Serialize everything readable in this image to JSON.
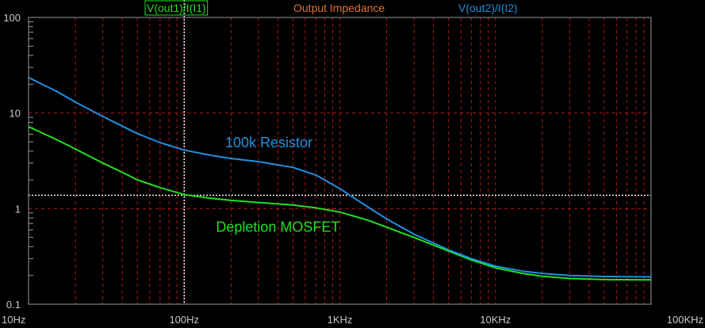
{
  "chart_data": {
    "type": "line",
    "title": "Output Impedance",
    "x_scale": "log",
    "y_scale": "log",
    "xlim": [
      10,
      100000
    ],
    "ylim": [
      0.1,
      100
    ],
    "x_ticks": [
      {
        "value": 10,
        "label": "10Hz"
      },
      {
        "value": 100,
        "label": "100Hz"
      },
      {
        "value": 1000,
        "label": "1KHz"
      },
      {
        "value": 10000,
        "label": "10KHz"
      },
      {
        "value": 100000,
        "label": "100KHz"
      }
    ],
    "y_ticks": [
      {
        "value": 100,
        "label": "100"
      },
      {
        "value": 10,
        "label": "10"
      },
      {
        "value": 1,
        "label": "1"
      },
      {
        "value": 0.1,
        "label": "0.1"
      }
    ],
    "grid": true,
    "cursor": {
      "x": 100,
      "y": 1.38
    },
    "annotations": [
      {
        "text": "100k Resistor",
        "x": 350,
        "y": 4.9,
        "color": "#1e90e0"
      },
      {
        "text": "Depletion MOSFET",
        "x": 400,
        "y": 0.64,
        "color": "#20e020"
      }
    ],
    "series": [
      {
        "name": "V(out1)/I(I1)",
        "color": "#20e020",
        "boxed": true,
        "points": [
          [
            10,
            7.2
          ],
          [
            15,
            5.3
          ],
          [
            20,
            4.2
          ],
          [
            30,
            3.0
          ],
          [
            40,
            2.4
          ],
          [
            50,
            2.0
          ],
          [
            70,
            1.66
          ],
          [
            100,
            1.4
          ],
          [
            150,
            1.28
          ],
          [
            200,
            1.22
          ],
          [
            300,
            1.16
          ],
          [
            500,
            1.09
          ],
          [
            700,
            1.02
          ],
          [
            1000,
            0.92
          ],
          [
            1500,
            0.76
          ],
          [
            2000,
            0.64
          ],
          [
            3000,
            0.5
          ],
          [
            5000,
            0.36
          ],
          [
            7000,
            0.29
          ],
          [
            10000,
            0.24
          ],
          [
            15000,
            0.21
          ],
          [
            20000,
            0.196
          ],
          [
            30000,
            0.186
          ],
          [
            50000,
            0.181
          ],
          [
            100000,
            0.18
          ]
        ]
      },
      {
        "name": "V(out2)/I(I2)",
        "color": "#1e90e0",
        "boxed": false,
        "points": [
          [
            10,
            23.5
          ],
          [
            15,
            17.0
          ],
          [
            20,
            13.0
          ],
          [
            30,
            9.2
          ],
          [
            40,
            7.3
          ],
          [
            50,
            6.1
          ],
          [
            70,
            4.9
          ],
          [
            100,
            4.1
          ],
          [
            150,
            3.6
          ],
          [
            200,
            3.35
          ],
          [
            300,
            3.1
          ],
          [
            500,
            2.7
          ],
          [
            700,
            2.25
          ],
          [
            1000,
            1.62
          ],
          [
            1500,
            1.05
          ],
          [
            2000,
            0.78
          ],
          [
            3000,
            0.54
          ],
          [
            5000,
            0.37
          ],
          [
            7000,
            0.3
          ],
          [
            10000,
            0.25
          ],
          [
            15000,
            0.222
          ],
          [
            20000,
            0.21
          ],
          [
            30000,
            0.2
          ],
          [
            50000,
            0.195
          ],
          [
            100000,
            0.193
          ]
        ]
      }
    ]
  },
  "colors": {
    "background": "#000000",
    "axis": "#9a9a9a",
    "grid": "#b01818",
    "cursor": "#ffffff",
    "title": "#e07030"
  }
}
